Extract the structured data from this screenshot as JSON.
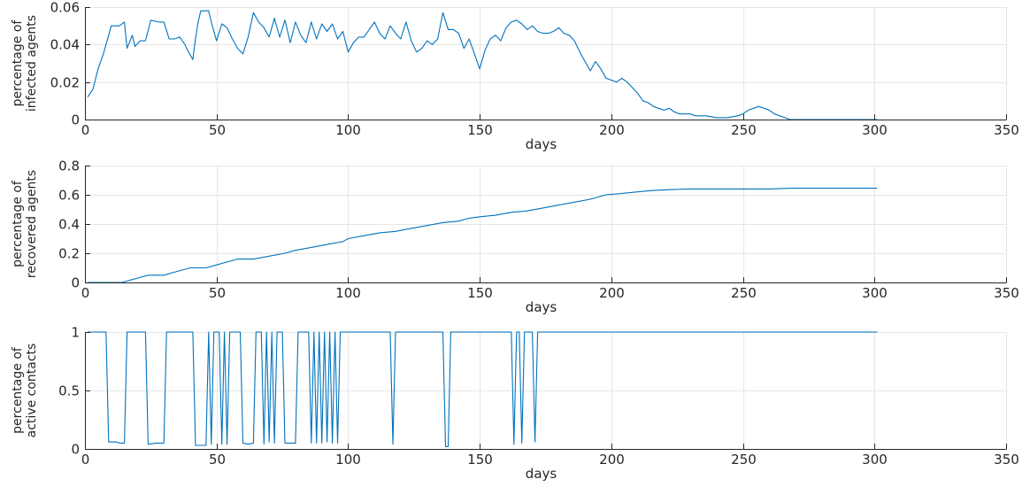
{
  "chart_data": [
    {
      "type": "line",
      "xlabel": "days",
      "ylabel": [
        "percentage of",
        "infected agents"
      ],
      "xlim": [
        0,
        350
      ],
      "ylim": [
        0,
        0.06
      ],
      "xticks": [
        "0",
        "50",
        "100",
        "150",
        "200",
        "250",
        "300",
        "350"
      ],
      "yticks": [
        "0",
        "0.02",
        "0.04",
        "0.06"
      ],
      "grid": true,
      "series": [
        {
          "color": "#0072BD",
          "points": [
            [
              1,
              0.012
            ],
            [
              3,
              0.016
            ],
            [
              5,
              0.027
            ],
            [
              7,
              0.035
            ],
            [
              9,
              0.045
            ],
            [
              10,
              0.05
            ],
            [
              13,
              0.05
            ],
            [
              15,
              0.052
            ],
            [
              16,
              0.038
            ],
            [
              18,
              0.045
            ],
            [
              19,
              0.039
            ],
            [
              21,
              0.042
            ],
            [
              23,
              0.042
            ],
            [
              25,
              0.053
            ],
            [
              28,
              0.052
            ],
            [
              30,
              0.052
            ],
            [
              32,
              0.043
            ],
            [
              34,
              0.043
            ],
            [
              36,
              0.044
            ],
            [
              38,
              0.04
            ],
            [
              39,
              0.037
            ],
            [
              41,
              0.032
            ],
            [
              42,
              0.043
            ],
            [
              43,
              0.052
            ],
            [
              44,
              0.058
            ],
            [
              47,
              0.058
            ],
            [
              48,
              0.052
            ],
            [
              50,
              0.042
            ],
            [
              52,
              0.051
            ],
            [
              54,
              0.049
            ],
            [
              56,
              0.043
            ],
            [
              58,
              0.038
            ],
            [
              60,
              0.035
            ],
            [
              62,
              0.044
            ],
            [
              64,
              0.057
            ],
            [
              66,
              0.052
            ],
            [
              68,
              0.049
            ],
            [
              70,
              0.044
            ],
            [
              72,
              0.054
            ],
            [
              74,
              0.044
            ],
            [
              76,
              0.053
            ],
            [
              78,
              0.041
            ],
            [
              80,
              0.052
            ],
            [
              82,
              0.045
            ],
            [
              84,
              0.041
            ],
            [
              86,
              0.052
            ],
            [
              88,
              0.043
            ],
            [
              90,
              0.051
            ],
            [
              92,
              0.047
            ],
            [
              94,
              0.051
            ],
            [
              96,
              0.043
            ],
            [
              98,
              0.047
            ],
            [
              100,
              0.036
            ],
            [
              102,
              0.041
            ],
            [
              104,
              0.044
            ],
            [
              106,
              0.044
            ],
            [
              108,
              0.048
            ],
            [
              110,
              0.052
            ],
            [
              112,
              0.046
            ],
            [
              114,
              0.043
            ],
            [
              116,
              0.05
            ],
            [
              118,
              0.046
            ],
            [
              120,
              0.043
            ],
            [
              122,
              0.052
            ],
            [
              124,
              0.042
            ],
            [
              126,
              0.036
            ],
            [
              128,
              0.038
            ],
            [
              130,
              0.042
            ],
            [
              132,
              0.04
            ],
            [
              134,
              0.043
            ],
            [
              136,
              0.057
            ],
            [
              138,
              0.048
            ],
            [
              140,
              0.048
            ],
            [
              142,
              0.046
            ],
            [
              144,
              0.038
            ],
            [
              146,
              0.043
            ],
            [
              148,
              0.035
            ],
            [
              150,
              0.027
            ],
            [
              152,
              0.037
            ],
            [
              154,
              0.043
            ],
            [
              156,
              0.045
            ],
            [
              158,
              0.042
            ],
            [
              160,
              0.049
            ],
            [
              162,
              0.052
            ],
            [
              164,
              0.053
            ],
            [
              166,
              0.051
            ],
            [
              168,
              0.048
            ],
            [
              170,
              0.05
            ],
            [
              172,
              0.047
            ],
            [
              174,
              0.046
            ],
            [
              176,
              0.046
            ],
            [
              178,
              0.047
            ],
            [
              180,
              0.049
            ],
            [
              182,
              0.046
            ],
            [
              184,
              0.045
            ],
            [
              186,
              0.042
            ],
            [
              188,
              0.036
            ],
            [
              190,
              0.031
            ],
            [
              192,
              0.026
            ],
            [
              194,
              0.031
            ],
            [
              196,
              0.027
            ],
            [
              198,
              0.022
            ],
            [
              200,
              0.021
            ],
            [
              202,
              0.02
            ],
            [
              204,
              0.022
            ],
            [
              206,
              0.02
            ],
            [
              208,
              0.017
            ],
            [
              210,
              0.014
            ],
            [
              212,
              0.01
            ],
            [
              214,
              0.009
            ],
            [
              216,
              0.007
            ],
            [
              218,
              0.006
            ],
            [
              220,
              0.005
            ],
            [
              222,
              0.006
            ],
            [
              224,
              0.004
            ],
            [
              226,
              0.003
            ],
            [
              230,
              0.003
            ],
            [
              232,
              0.002
            ],
            [
              236,
              0.002
            ],
            [
              240,
              0.001
            ],
            [
              244,
              0.001
            ],
            [
              248,
              0.002
            ],
            [
              250,
              0.003
            ],
            [
              252,
              0.005
            ],
            [
              254,
              0.006
            ],
            [
              256,
              0.007
            ],
            [
              258,
              0.006
            ],
            [
              260,
              0.005
            ],
            [
              262,
              0.003
            ],
            [
              264,
              0.002
            ],
            [
              266,
              0.001
            ],
            [
              268,
              0.0
            ],
            [
              301,
              0.0
            ]
          ]
        }
      ]
    },
    {
      "type": "line",
      "xlabel": "days",
      "ylabel": [
        "percentage of",
        "recovered agents"
      ],
      "xlim": [
        0,
        350
      ],
      "ylim": [
        0,
        0.8
      ],
      "xticks": [
        "0",
        "50",
        "100",
        "150",
        "200",
        "250",
        "300",
        "350"
      ],
      "yticks": [
        "0",
        "0.2",
        "0.4",
        "0.6",
        "0.8"
      ],
      "grid": true,
      "series": [
        {
          "color": "#0072BD",
          "points": [
            [
              1,
              0.0
            ],
            [
              14,
              0.0
            ],
            [
              16,
              0.01
            ],
            [
              18,
              0.02
            ],
            [
              20,
              0.03
            ],
            [
              24,
              0.05
            ],
            [
              30,
              0.05
            ],
            [
              34,
              0.07
            ],
            [
              38,
              0.09
            ],
            [
              40,
              0.1
            ],
            [
              46,
              0.1
            ],
            [
              50,
              0.12
            ],
            [
              54,
              0.14
            ],
            [
              58,
              0.16
            ],
            [
              64,
              0.16
            ],
            [
              70,
              0.18
            ],
            [
              76,
              0.2
            ],
            [
              80,
              0.22
            ],
            [
              86,
              0.24
            ],
            [
              92,
              0.26
            ],
            [
              98,
              0.28
            ],
            [
              100,
              0.3
            ],
            [
              106,
              0.32
            ],
            [
              112,
              0.34
            ],
            [
              118,
              0.35
            ],
            [
              124,
              0.37
            ],
            [
              130,
              0.39
            ],
            [
              136,
              0.41
            ],
            [
              142,
              0.42
            ],
            [
              146,
              0.44
            ],
            [
              150,
              0.45
            ],
            [
              156,
              0.46
            ],
            [
              162,
              0.48
            ],
            [
              168,
              0.49
            ],
            [
              174,
              0.51
            ],
            [
              180,
              0.53
            ],
            [
              186,
              0.55
            ],
            [
              192,
              0.57
            ],
            [
              198,
              0.6
            ],
            [
              204,
              0.61
            ],
            [
              210,
              0.62
            ],
            [
              216,
              0.63
            ],
            [
              222,
              0.635
            ],
            [
              230,
              0.64
            ],
            [
              240,
              0.64
            ],
            [
              250,
              0.64
            ],
            [
              260,
              0.64
            ],
            [
              268,
              0.645
            ],
            [
              280,
              0.645
            ],
            [
              301,
              0.645
            ]
          ]
        }
      ]
    },
    {
      "type": "line",
      "xlabel": "days",
      "ylabel": [
        "percentage of",
        "active contacts"
      ],
      "xlim": [
        0,
        350
      ],
      "ylim": [
        0,
        1
      ],
      "xticks": [
        "0",
        "50",
        "100",
        "150",
        "200",
        "250",
        "300",
        "350"
      ],
      "yticks": [
        "0",
        "0.5",
        "1"
      ],
      "grid": true,
      "series": [
        {
          "color": "#0072BD",
          "points": [
            [
              1,
              1
            ],
            [
              8,
              1
            ],
            [
              9,
              0.06
            ],
            [
              12,
              0.06
            ],
            [
              13,
              0.05
            ],
            [
              15,
              0.05
            ],
            [
              16,
              1
            ],
            [
              23,
              1
            ],
            [
              24,
              0.04
            ],
            [
              27,
              0.05
            ],
            [
              30,
              0.05
            ],
            [
              31,
              1
            ],
            [
              41,
              1
            ],
            [
              42,
              0.03
            ],
            [
              46,
              0.03
            ],
            [
              47,
              1
            ],
            [
              48,
              0.04
            ],
            [
              49,
              1
            ],
            [
              51,
              1
            ],
            [
              52,
              0.04
            ],
            [
              53,
              1
            ],
            [
              54,
              0.04
            ],
            [
              55,
              1
            ],
            [
              59,
              1
            ],
            [
              60,
              0.05
            ],
            [
              62,
              0.04
            ],
            [
              64,
              0.05
            ],
            [
              65,
              1
            ],
            [
              67,
              1
            ],
            [
              68,
              0.04
            ],
            [
              69,
              1
            ],
            [
              70,
              0.06
            ],
            [
              71,
              1
            ],
            [
              72,
              0.05
            ],
            [
              73,
              1
            ],
            [
              75,
              1
            ],
            [
              76,
              0.05
            ],
            [
              80,
              0.05
            ],
            [
              81,
              1
            ],
            [
              85,
              1
            ],
            [
              86,
              0.05
            ],
            [
              87,
              1
            ],
            [
              88,
              0.05
            ],
            [
              89,
              1
            ],
            [
              90,
              0.05
            ],
            [
              91,
              1
            ],
            [
              92,
              0.06
            ],
            [
              93,
              1
            ],
            [
              94,
              0.05
            ],
            [
              95,
              1
            ],
            [
              96,
              0.05
            ],
            [
              97,
              1
            ],
            [
              116,
              1
            ],
            [
              117,
              0.04
            ],
            [
              118,
              1
            ],
            [
              136,
              1
            ],
            [
              137,
              0.02
            ],
            [
              138,
              0.02
            ],
            [
              139,
              1
            ],
            [
              162,
              1
            ],
            [
              163,
              0.04
            ],
            [
              164,
              1
            ],
            [
              165,
              1
            ],
            [
              166,
              0.05
            ],
            [
              167,
              1
            ],
            [
              170,
              1
            ],
            [
              171,
              0.06
            ],
            [
              172,
              1
            ],
            [
              301,
              1
            ]
          ]
        }
      ]
    }
  ]
}
